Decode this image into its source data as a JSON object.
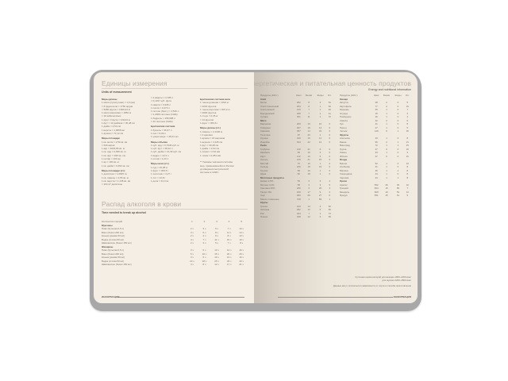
{
  "left_page": {
    "units": {
      "title": "Единицы измерения",
      "subtitle": "Units of measurement",
      "columns": [
        [
          "Меры длины",
          "1 миля (сухопутная) = 1,6 (км)",
          "= 8 фурлонгов = 1760 ярдов",
          "= 5280 футов = 1609,34 м",
          "1 миля (морская) = 1852 м",
          "= 10 кабельтовых",
          "1 ярд = 3 фута = 0,9144 м",
          "1 фут = 12 дюймов = 30,48 см",
          "1 дюйм = 2,54 см",
          "1 верста = 1,0668 км",
          "1 аршин = 71,12 см",
          "Меры площади",
          "1 кв. миля = 2,59 кв. км",
          "= 640 акров",
          "1 акр = 4046,86 кв. м",
          "1 кв. ярд = 0,836 кв. м",
          "1 кв. фут = 929 кв. см",
          "1 гектар = 100 ар",
          "1 ар = 100 кв. м",
          "1 кв. дюйм = 6,452 кв. см",
          "Меры площади (ст.)",
          "1 десятина = 1,0925 га",
          "1 кв. сажень = 4,55 кв. м",
          "1 кв. верста = 1,138 кв. км",
          "= 104,17 десятины"
        ],
        [
          "= 4 кварты = 3,785 л",
          "= 0,1337 куб. фута",
          "1 кварта = 0,946 л",
          "1 пинта = 0,473 л",
          "1 галлон (брит.) = 4,546 л",
          "= 1,2009 галлона (США)",
          "1 баррель = 158,988 л",
          "= 42 галлона (США)",
          "Британская система",
          "1 бушель = 36,37 л",
          "1 пек = 9,09 л",
          "1 унция жидк. = 28,41 мл",
          "Меры объёма",
          "1 куб. ярд = 0,7646 куб. м",
          "1 куб. фут = 28,32 л",
          "1 куб. дюйм = 16,39 куб. см",
          "1 ведро = 12,3 л",
          "1 штоф = 1,23 л",
          "Меры веса (ст.)",
          "1 пуд = 16,38 кг",
          "1 фунт = 409,5 г",
          "1 золотник = 4,27 г",
          "1 лот = 12,8 г",
          "1 доля = 44,4 мг"
        ],
        [
          "Британская система веса",
          "1 тонна длинная = 1016 кг",
          "= 2240 фунтов",
          "1 тонна короткая = 907,2 кг",
          "= 2000 фунтов",
          "1 стоун = 6,35 кг",
          "= 14 фунтов",
          "1 фунт = 453,6 г",
          "Меры длины (ст.)",
          "1 сажень = 2,1336 м",
          "= 3 аршина",
          "1 аршин = 16 вершков",
          "1 вершок = 4,445 см",
          "1 фут = 30,48 см",
          "1 дюйм = 2,54 см",
          "1 линия = 2,54 мм",
          "1 точка = 0,254 мм",
          "",
          "** Указаны значения системы",
          "мер, применявшейся в России",
          "до введения метрической",
          "системы в 1918 г."
        ]
      ]
    },
    "alcohol": {
      "title": "Распад алкоголя в крови",
      "subtitle": "Time needed to break up alcohol",
      "header": [
        "Количество порций",
        "1",
        "2",
        "3",
        "4",
        "5"
      ],
      "groups": [
        {
          "label": "Мужчины",
          "rows": [
            [
              "Пиво (бутылка 0,5 л)",
              "2 ч",
              "3 ч",
              "5 ч",
              "7 ч",
              "10 ч"
            ],
            [
              "Вино (бокал 200 мл)",
              "3 ч",
              "6 ч",
              "8 ч",
              "11 ч",
              "14 ч"
            ],
            [
              "Коньяк (рюмка 50 мл)",
              "2 ч",
              "4 ч",
              "6 ч",
              "8 ч",
              "10 ч"
            ],
            [
              "Водка (стопка 50 мл)",
              "4 ч",
              "7 ч",
              "11 ч",
              "15 ч",
              "19 ч"
            ],
            [
              "Шампанское (бокал 150 мл)",
              "2 ч",
              "3 ч",
              "5 ч",
              "7 ч",
              "8 ч"
            ]
          ]
        },
        {
          "label": "Женщины",
          "rows": [
            [
              "Пиво (бутылка 0,5 л)",
              "3 ч",
              "6 ч",
              "10 ч",
              "13 ч",
              "16 ч"
            ],
            [
              "Вино (бокал 200 мл)",
              "5 ч",
              "10 ч",
              "15 ч",
              "20 ч",
              "26 ч"
            ],
            [
              "Коньяк (рюмка 50 мл)",
              "3 ч",
              "6 ч",
              "10 ч",
              "13 ч",
              "16 ч"
            ],
            [
              "Водка (стопка 50 мл)",
              "10 ч",
              "18 ч",
              "25 ч",
              "33 ч",
              "40 ч"
            ],
            [
              "Шампанское (бокал 150 мл)",
              "4 ч",
              "8 ч",
              "12 ч",
              "17 ч",
              "21 ч"
            ]
          ]
        }
      ]
    },
    "footer": "ИНФОРМАЦИЯ"
  },
  "right_page": {
    "title": "Энергетическая и питательная ценность продуктов",
    "subtitle": "Energy and nutritional information",
    "header": [
      "Продукты (100 г)",
      "Ккал",
      "Белки",
      "Жиры",
      "Угл."
    ],
    "tables": [
      [
        [
          "Хлеб"
        ],
        [
          "Батон",
          "262",
          "8",
          "3",
          "51"
        ],
        [
          "Хлеб пшеничный",
          "254",
          "8",
          "1",
          "52"
        ],
        [
          "Хлеб ржаной",
          "210",
          "7",
          "1",
          "40"
        ],
        [
          "Бородинский",
          "208",
          "7",
          "1",
          "41"
        ],
        [
          "Сухари",
          "331",
          "11",
          "1",
          "72"
        ],
        [
          "Мясо"
        ],
        [
          "Баранина",
          "209",
          "16",
          "16",
          "0"
        ],
        [
          "Говядина",
          "187",
          "19",
          "12",
          "0"
        ],
        [
          "Свинина",
          "357",
          "14",
          "33",
          "0"
        ],
        [
          "Телятина",
          "97",
          "20",
          "1",
          "0"
        ],
        [
          "Курица",
          "190",
          "16",
          "14",
          "0"
        ],
        [
          "Индейка",
          "194",
          "22",
          "12",
          "0"
        ],
        [
          "Рыба"
        ],
        [
          "Горбуша",
          "140",
          "21",
          "6",
          "0"
        ],
        [
          "Камбала",
          "83",
          "16",
          "2",
          "0"
        ],
        [
          "Карп",
          "112",
          "16",
          "5",
          "0"
        ],
        [
          "Лосось",
          "219",
          "21",
          "15",
          "0"
        ],
        [
          "Минтай",
          "70",
          "16",
          "1",
          "0"
        ],
        [
          "Сельдь",
          "246",
          "18",
          "19",
          "0"
        ],
        [
          "Треска",
          "69",
          "16",
          "1",
          "0"
        ],
        [
          "Щука",
          "82",
          "18",
          "1",
          "0"
        ],
        [
          "Молочные продукты"
        ],
        [
          "Кефир 2,5%",
          "53",
          "3",
          "3",
          "4"
        ],
        [
          "Молоко 3,2%",
          "58",
          "3",
          "3",
          "5"
        ],
        [
          "Сметана 20%",
          "206",
          "3",
          "20",
          "3"
        ],
        [
          "Творог 9%",
          "159",
          "17",
          "9",
          "2"
        ],
        [
          "Сыр",
          "360",
          "26",
          "27",
          "0"
        ],
        [
          "Масло сливочное",
          "748",
          "1",
          "83",
          "1"
        ],
        [
          "Крупы"
        ],
        [
          "Гречка",
          "313",
          "13",
          "3",
          "62"
        ],
        [
          "Овсянка",
          "352",
          "12",
          "6",
          "60"
        ],
        [
          "Рис",
          "344",
          "7",
          "1",
          "74"
        ],
        [
          "Пшено",
          "348",
          "12",
          "3",
          "69"
        ]
      ],
      [
        [
          "Овощи"
        ],
        [
          "Капуста",
          "28",
          "2",
          "0",
          "5"
        ],
        [
          "Картофель",
          "77",
          "2",
          "0",
          "16"
        ],
        [
          "Морковь",
          "35",
          "1",
          "0",
          "7"
        ],
        [
          "Огурцы",
          "15",
          "1",
          "0",
          "3"
        ],
        [
          "Помидоры",
          "20",
          "1",
          "0",
          "4"
        ],
        [
          "Свёкла",
          "42",
          "2",
          "0",
          "9"
        ],
        [
          "Лук",
          "41",
          "1",
          "0",
          "8"
        ],
        [
          "Перец",
          "27",
          "1",
          "0",
          "5"
        ],
        [
          "Чеснок",
          "149",
          "6",
          "1",
          "30"
        ],
        [
          "Фрукты"
        ],
        [
          "Апельсин",
          "43",
          "1",
          "0",
          "8"
        ],
        [
          "Банан",
          "96",
          "2",
          "1",
          "21"
        ],
        [
          "Виноград",
          "72",
          "1",
          "1",
          "15"
        ],
        [
          "Груша",
          "47",
          "0",
          "0",
          "10"
        ],
        [
          "Лимон",
          "34",
          "1",
          "0",
          "3"
        ],
        [
          "Яблоко",
          "47",
          "0",
          "0",
          "10"
        ],
        [
          "Ягоды"
        ],
        [
          "Вишня",
          "52",
          "1",
          "0",
          "10"
        ],
        [
          "Клубника",
          "41",
          "1",
          "0",
          "8"
        ],
        [
          "Малина",
          "46",
          "1",
          "1",
          "8"
        ],
        [
          "Смородина",
          "44",
          "1",
          "0",
          "8"
        ],
        [
          "Черника",
          "44",
          "1",
          "1",
          "8"
        ],
        [
          "Орехи"
        ],
        [
          "Арахис",
          "552",
          "26",
          "45",
          "10"
        ],
        [
          "Грецкий",
          "654",
          "15",
          "65",
          "7"
        ],
        [
          "Миндаль",
          "609",
          "19",
          "54",
          "13"
        ],
        [
          "Фундук",
          "651",
          "15",
          "61",
          "9"
        ]
      ]
    ],
    "notes": [
      "Суточная норма калорий для женщин 1800–2200 ккал",
      "для мужчин 2200–2800 ккал",
      "Данные могут отличаться в зависимости от сорта и способа приготовления"
    ],
    "footer": "ИНФОРМАЦИЯ"
  }
}
